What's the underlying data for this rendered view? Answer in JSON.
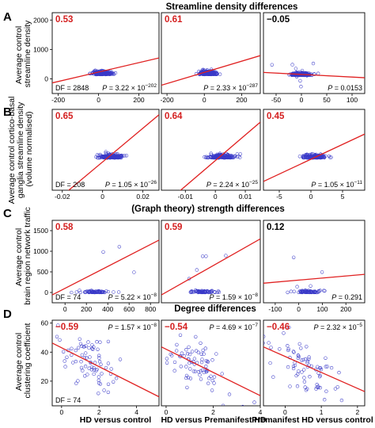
{
  "panel_letters": [
    "A",
    "B",
    "C",
    "D"
  ],
  "section_titles": [
    "Streamline density differences",
    "",
    "(Graph theory) strength differences",
    "Degree differences"
  ],
  "row_ylabels": [
    [
      "Average control",
      "streamline density"
    ],
    [
      "Average control cortico-basal",
      "ganglia streamline density",
      "(volume normalised)"
    ],
    [
      "Average control",
      "brain region network traffic"
    ],
    [
      "Average control",
      "clustering coefficient"
    ]
  ],
  "col_xlabels": [
    "HD versus control",
    "HD versus Premanifest HD",
    "Premanifest HD versus control"
  ],
  "colors": {
    "point": "#3a3ac8",
    "fit_line": "#e02020",
    "corr_positive": "#d42020",
    "corr_neutral": "#000000"
  },
  "chart_data": [
    {
      "type": "scatter",
      "row": 0,
      "col": 0,
      "corr": "0.53",
      "corr_color": "red",
      "df": "DF = 2848",
      "p_base": "3.22 × 10",
      "p_exp": "−202",
      "xlim": [
        -230,
        300
      ],
      "ylim": [
        -500,
        2250
      ],
      "xticks": [
        "-200",
        "0",
        "200"
      ],
      "xtick_values": [
        -200,
        0,
        200
      ],
      "yticks": [
        "2000",
        "1000",
        "0"
      ],
      "ytick_values": [
        2000,
        1000,
        0
      ],
      "fit": {
        "slope": 1.6,
        "intercept": 230
      },
      "n": 260,
      "cluster": [
        20,
        150,
        260
      ],
      "spread": [
        60,
        420
      ]
    },
    {
      "type": "scatter",
      "row": 0,
      "col": 1,
      "corr": "0.61",
      "corr_color": "red",
      "p_base": "2.33 × 10",
      "p_exp": "−287",
      "xlim": [
        -230,
        300
      ],
      "ylim": [
        -500,
        2250
      ],
      "xticks": [
        "-200",
        "0",
        "200"
      ],
      "xtick_values": [
        -200,
        0,
        200
      ],
      "fit": {
        "slope": 1.9,
        "intercept": 220
      },
      "n": 260,
      "cluster": [
        20,
        150,
        260
      ],
      "spread": [
        60,
        420
      ]
    },
    {
      "type": "scatter",
      "row": 0,
      "col": 2,
      "corr": "−0.05",
      "corr_color": "black",
      "p_base": "0.0153",
      "xlim": [
        -75,
        125
      ],
      "ylim": [
        -500,
        2250
      ],
      "xticks": [
        "-50",
        "0",
        "50",
        "100"
      ],
      "xtick_values": [
        -50,
        0,
        50,
        100
      ],
      "fit": {
        "slope": -0.9,
        "intercept": 150
      },
      "n": 260,
      "cluster": [
        0,
        120,
        250
      ],
      "spread": [
        25,
        300
      ]
    },
    {
      "type": "scatter",
      "row": 1,
      "col": 0,
      "corr": "0.65",
      "corr_color": "red",
      "df": "DF = 208",
      "p_base": "1.05 × 10",
      "p_exp": "−26",
      "xlim": [
        -0.025,
        0.028
      ],
      "ylim": [
        -0.5,
        5.5
      ],
      "xticks": [
        "-0.02",
        "0",
        "0.02"
      ],
      "xtick_values": [
        -0.02,
        0,
        0.02
      ],
      "fit": {
        "slope": 125,
        "intercept": 1.6
      },
      "n": 170,
      "cluster": [
        0.004,
        1.9,
        200
      ],
      "spread": [
        0.009,
        1.0
      ]
    },
    {
      "type": "scatter",
      "row": 1,
      "col": 1,
      "corr": "0.64",
      "corr_color": "red",
      "p_base": "2.24 × 10",
      "p_exp": "−25",
      "xlim": [
        -0.018,
        0.015
      ],
      "ylim": [
        -0.5,
        5.5
      ],
      "xticks": [
        "-0.01",
        "0",
        "0.01"
      ],
      "xtick_values": [
        -0.01,
        0,
        0.01
      ],
      "fit": {
        "slope": 190,
        "intercept": 1.7
      },
      "n": 170,
      "cluster": [
        0.002,
        1.9,
        200
      ],
      "spread": [
        0.006,
        1.0
      ]
    },
    {
      "type": "scatter",
      "row": 1,
      "col": 2,
      "corr": "0.45",
      "corr_color": "red",
      "p_base": "1.05 × 10",
      "p_exp": "−11",
      "xlim": [
        -7.5,
        8.5
      ],
      "ylim": [
        -0.5,
        5.5
      ],
      "xticks": [
        "-5",
        "0",
        "5"
      ],
      "xtick_values": [
        -5,
        0,
        5
      ],
      "fit": {
        "slope": 0.22,
        "intercept": 1.8
      },
      "n": 170,
      "cluster": [
        0.5,
        1.9,
        200
      ],
      "spread": [
        2.6,
        1.0
      ]
    },
    {
      "type": "scatter",
      "row": 2,
      "col": 0,
      "corr": "0.58",
      "corr_color": "red",
      "df": "DF = 74",
      "p_base": "5.22 × 10",
      "p_exp": "−8",
      "xlim": [
        -120,
        880
      ],
      "ylim": [
        -250,
        1750
      ],
      "xticks": [
        "0",
        "200",
        "400",
        "600",
        "800"
      ],
      "xtick_values": [
        0,
        200,
        400,
        600,
        800
      ],
      "yticks": [
        "1500",
        "1000",
        "500",
        "0"
      ],
      "ytick_values": [
        1500,
        1000,
        500,
        0
      ],
      "fit": {
        "slope": 1.33,
        "intercept": 100
      },
      "n": 75,
      "cluster": [
        280,
        0,
        70
      ],
      "spread": [
        200,
        380
      ]
    },
    {
      "type": "scatter",
      "row": 2,
      "col": 1,
      "corr": "0.59",
      "corr_color": "red",
      "p_base": "1.59 × 10",
      "p_exp": "−8",
      "xlim": [
        -80,
        600
      ],
      "ylim": [
        -250,
        1750
      ],
      "fit": {
        "slope": 2.0,
        "intercept": 100
      },
      "n": 75,
      "cluster": [
        200,
        0,
        70
      ],
      "spread": [
        140,
        380
      ]
    },
    {
      "type": "scatter",
      "row": 2,
      "col": 2,
      "corr": "0.12",
      "corr_color": "black",
      "p_base": "0.291",
      "xlim": [
        -150,
        280
      ],
      "ylim": [
        -250,
        1750
      ],
      "xticks": [
        "-100",
        "0",
        "100",
        "200"
      ],
      "xtick_values": [
        -100,
        0,
        100,
        200
      ],
      "fit": {
        "slope": 0.5,
        "intercept": 300
      },
      "n": 75,
      "cluster": [
        30,
        0,
        70
      ],
      "spread": [
        80,
        380
      ]
    },
    {
      "type": "scatter",
      "row": 3,
      "col": 0,
      "corr": "−0.59",
      "corr_color": "red",
      "df": "DF = 74",
      "p_base": "1.57 × 10",
      "p_exp": "−8",
      "xlim": [
        -0.5,
        5.2
      ],
      "ylim": [
        3,
        62
      ],
      "xticks": [
        "0",
        "2",
        "4"
      ],
      "xtick_values": [
        0,
        2,
        4
      ],
      "yticks": [
        "60",
        "40",
        "20"
      ],
      "ytick_values": [
        60,
        40,
        20
      ],
      "fit": {
        "slope": -6.5,
        "intercept": 43
      },
      "n": 75,
      "cluster": [
        1.6,
        34,
        0
      ],
      "spread": [
        0.9,
        9
      ]
    },
    {
      "type": "scatter",
      "row": 3,
      "col": 1,
      "corr": "−0.54",
      "corr_color": "red",
      "p_base": "4.69 × 10",
      "p_exp": "−7",
      "xlim": [
        -0.2,
        4.0
      ],
      "ylim": [
        3,
        62
      ],
      "xticks": [
        "0",
        "2",
        "4"
      ],
      "xtick_values": [
        0,
        2,
        4
      ],
      "fit": {
        "slope": -8.0,
        "intercept": 42
      },
      "n": 75,
      "cluster": [
        1.3,
        32,
        0
      ],
      "spread": [
        0.7,
        9
      ]
    },
    {
      "type": "scatter",
      "row": 3,
      "col": 2,
      "corr": "−0.46",
      "corr_color": "red",
      "p_base": "2.32 × 10",
      "p_exp": "−5",
      "xlim": [
        -0.6,
        2.2
      ],
      "ylim": [
        3,
        62
      ],
      "xticks": [
        "0",
        "1",
        "2"
      ],
      "xtick_values": [
        0,
        1,
        2
      ],
      "fit": {
        "slope": -11,
        "intercept": 37
      },
      "n": 75,
      "cluster": [
        0.5,
        34,
        0
      ],
      "spread": [
        0.45,
        9
      ]
    }
  ]
}
